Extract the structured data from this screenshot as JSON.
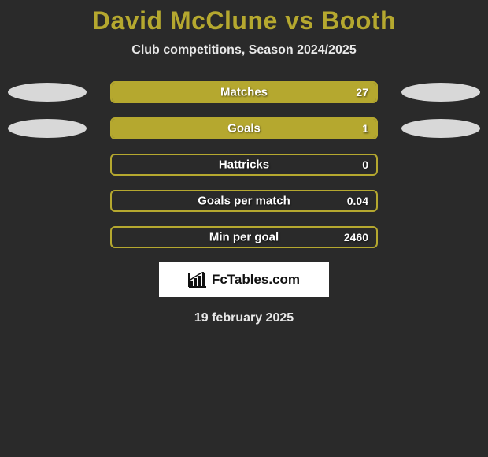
{
  "title": "David McClune vs Booth",
  "subtitle": "Club competitions, Season 2024/2025",
  "colors": {
    "accent": "#b5a82f",
    "background": "#2a2a2a",
    "text_light": "#e8e8e8",
    "ellipse": "#d8d8d8",
    "brand_bg": "#ffffff"
  },
  "stats": [
    {
      "label": "Matches",
      "value": "27",
      "fill_pct": 100,
      "show_left_ellipse": true,
      "show_right_ellipse": true
    },
    {
      "label": "Goals",
      "value": "1",
      "fill_pct": 100,
      "show_left_ellipse": true,
      "show_right_ellipse": true
    },
    {
      "label": "Hattricks",
      "value": "0",
      "fill_pct": 0,
      "show_left_ellipse": false,
      "show_right_ellipse": false
    },
    {
      "label": "Goals per match",
      "value": "0.04",
      "fill_pct": 0,
      "show_left_ellipse": false,
      "show_right_ellipse": false
    },
    {
      "label": "Min per goal",
      "value": "2460",
      "fill_pct": 0,
      "show_left_ellipse": false,
      "show_right_ellipse": false
    }
  ],
  "brand": "FcTables.com",
  "date": "19 february 2025"
}
